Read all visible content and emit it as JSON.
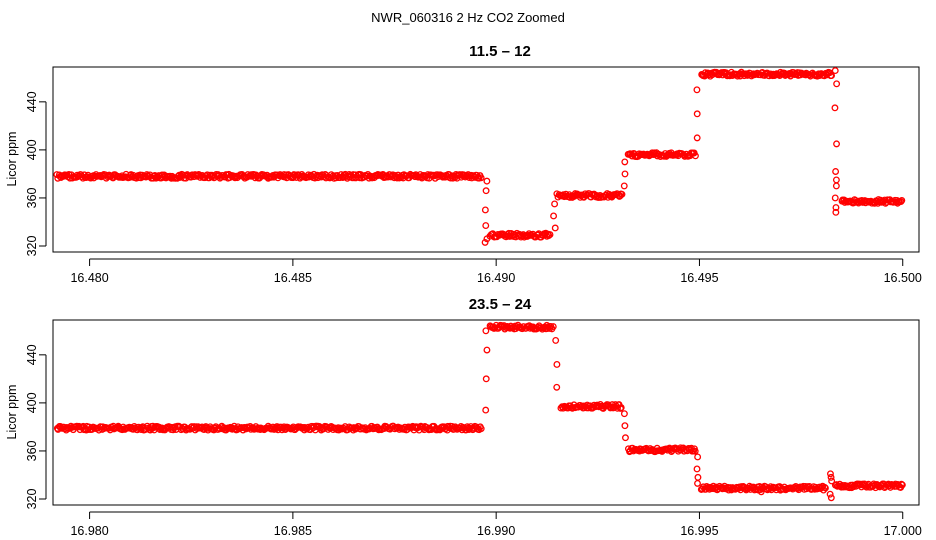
{
  "figure": {
    "suptitle": "NWR_060316  2 Hz CO2 Zoomed",
    "point_color": "#ff0000"
  },
  "chart_data": [
    {
      "type": "scatter",
      "title": "11.5 – 12",
      "xlabel": "",
      "ylabel": "Licor ppm",
      "xlim": [
        16.4791,
        16.5004
      ],
      "ylim": [
        315,
        469
      ],
      "xticks": [
        16.48,
        16.485,
        16.49,
        16.495,
        16.5
      ],
      "xtick_labels": [
        "16.480",
        "16.485",
        "16.490",
        "16.495",
        "16.500"
      ],
      "yticks": [
        320,
        360,
        400,
        440
      ],
      "ytick_labels": [
        "320",
        "360",
        "400",
        "440"
      ],
      "segments": [
        {
          "x_start": 16.4792,
          "x_end": 16.48965,
          "level": 378
        },
        {
          "x_start": 16.48985,
          "x_end": 16.49135,
          "level": 329
        },
        {
          "x_start": 16.4915,
          "x_end": 16.4931,
          "level": 362
        },
        {
          "x_start": 16.49325,
          "x_end": 16.4949,
          "level": 396
        },
        {
          "x_start": 16.49505,
          "x_end": 16.49825,
          "level": 463
        },
        {
          "x_start": 16.4985,
          "x_end": 16.5,
          "level": 357
        }
      ],
      "transitions": [
        {
          "x": 16.48975,
          "values": [
            374,
            366,
            350,
            337,
            326,
            323
          ]
        },
        {
          "x": 16.49143,
          "values": [
            335,
            345,
            355
          ]
        },
        {
          "x": 16.49317,
          "values": [
            370,
            380,
            390
          ]
        },
        {
          "x": 16.49495,
          "values": [
            410,
            430,
            450
          ]
        },
        {
          "x": 16.49835,
          "values": [
            466,
            455,
            435,
            405,
            382,
            375,
            370,
            360,
            352,
            348
          ]
        }
      ]
    },
    {
      "type": "scatter",
      "title": "23.5 – 24",
      "xlabel": "",
      "ylabel": "Licor ppm",
      "xlim": [
        16.9791,
        17.0004
      ],
      "ylim": [
        315,
        469
      ],
      "xticks": [
        16.98,
        16.985,
        16.99,
        16.995,
        17.0
      ],
      "xtick_labels": [
        "16.980",
        "16.985",
        "16.990",
        "16.995",
        "17.000"
      ],
      "yticks": [
        320,
        360,
        400,
        440
      ],
      "ytick_labels": [
        "320",
        "360",
        "400",
        "440"
      ],
      "segments": [
        {
          "x_start": 16.9792,
          "x_end": 16.98965,
          "level": 379
        },
        {
          "x_start": 16.98985,
          "x_end": 16.9914,
          "level": 463
        },
        {
          "x_start": 16.9916,
          "x_end": 16.9931,
          "level": 397
        },
        {
          "x_start": 16.99325,
          "x_end": 16.9949,
          "level": 361
        },
        {
          "x_start": 16.99505,
          "x_end": 16.9981,
          "level": 329
        },
        {
          "x_start": 16.99835,
          "x_end": 17.0,
          "level": 331
        }
      ],
      "transitions": [
        {
          "x": 16.98975,
          "values": [
            394,
            420,
            444,
            460
          ]
        },
        {
          "x": 16.99148,
          "values": [
            452,
            432,
            413
          ]
        },
        {
          "x": 16.99317,
          "values": [
            391,
            381,
            371
          ]
        },
        {
          "x": 16.99495,
          "values": [
            355,
            345,
            338,
            333
          ]
        },
        {
          "x": 16.9965,
          "values": [
            326
          ]
        },
        {
          "x": 16.99823,
          "values": [
            341,
            338,
            335,
            324,
            321
          ]
        }
      ]
    }
  ]
}
